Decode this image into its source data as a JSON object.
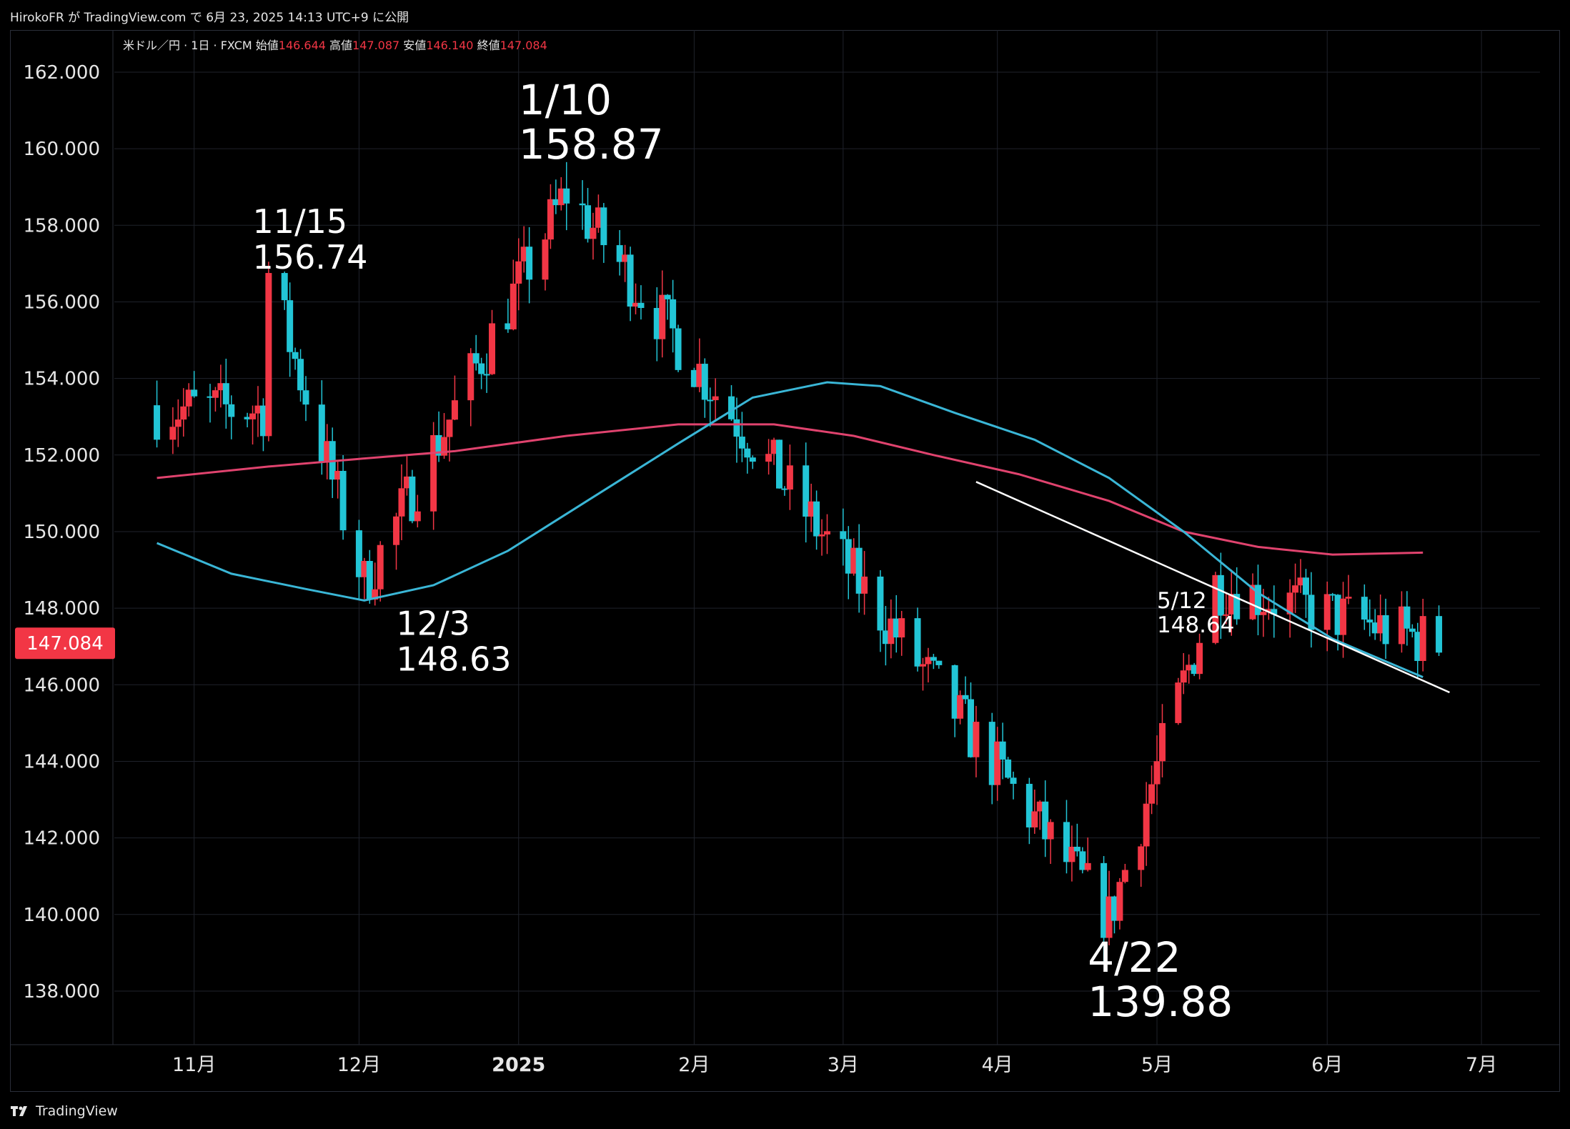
{
  "header": {
    "title": "HirokoFR が TradingView.com で 6月 23, 2025 14:13 UTC+9 に公開"
  },
  "legend": {
    "symbol": "米ドル／円 · 1日 · FXCM",
    "open_label": "始値",
    "open": "146.644",
    "high_label": "高値",
    "high": "147.087",
    "low_label": "安値",
    "low": "146.140",
    "close_label": "終値",
    "close": "147.084"
  },
  "footer": {
    "brand": "TradingView"
  },
  "chart_data": {
    "type": "candlestick",
    "title": "米ドル／円 · 1日 · FXCM",
    "ylim": [
      136.6,
      163.1
    ],
    "y_ticks": [
      "162.000",
      "160.000",
      "158.000",
      "156.000",
      "154.000",
      "152.000",
      "150.000",
      "148.000",
      "146.000",
      "144.000",
      "142.000",
      "140.000",
      "138.000"
    ],
    "x_ticks": [
      {
        "date": "2024-11-01",
        "label": "11月"
      },
      {
        "date": "2024-12-02",
        "label": "12月"
      },
      {
        "date": "2025-01-01",
        "label": "2025"
      },
      {
        "date": "2025-02-03",
        "label": "2月"
      },
      {
        "date": "2025-03-03",
        "label": "3月"
      },
      {
        "date": "2025-04-01",
        "label": "4月"
      },
      {
        "date": "2025-05-01",
        "label": "5月"
      },
      {
        "date": "2025-06-02",
        "label": "6月"
      },
      {
        "date": "2025-07-01",
        "label": "7月"
      }
    ],
    "last_price": "147.084",
    "colors": {
      "up": "#f23645",
      "down": "#22c5d6",
      "ma_blue": "#3ab6d6",
      "ma_red": "#e0436e",
      "trend": "#ffffff",
      "price_tag": "#f23645"
    },
    "anchors": [
      {
        "date": "2024-11-15",
        "price": 156.74
      },
      {
        "date": "2024-12-03",
        "price": 148.63
      },
      {
        "date": "2025-01-10",
        "price": 158.87
      },
      {
        "date": "2025-04-22",
        "price": 139.88
      },
      {
        "date": "2025-05-12",
        "price": 148.64
      },
      {
        "date": "2025-06-23",
        "price": 147.084
      }
    ],
    "ma_blue": [
      {
        "date": "2024-10-25",
        "v": 149.7
      },
      {
        "date": "2024-11-08",
        "v": 148.9
      },
      {
        "date": "2024-11-22",
        "v": 148.5
      },
      {
        "date": "2024-12-03",
        "v": 148.2
      },
      {
        "date": "2024-12-16",
        "v": 148.6
      },
      {
        "date": "2024-12-30",
        "v": 149.5
      },
      {
        "date": "2025-01-15",
        "v": 150.9
      },
      {
        "date": "2025-01-31",
        "v": 152.3
      },
      {
        "date": "2025-02-14",
        "v": 153.5
      },
      {
        "date": "2025-02-28",
        "v": 153.9
      },
      {
        "date": "2025-03-10",
        "v": 153.8
      },
      {
        "date": "2025-03-24",
        "v": 153.1
      },
      {
        "date": "2025-04-08",
        "v": 152.4
      },
      {
        "date": "2025-04-22",
        "v": 151.4
      },
      {
        "date": "2025-05-06",
        "v": 150.0
      },
      {
        "date": "2025-05-20",
        "v": 148.4
      },
      {
        "date": "2025-06-03",
        "v": 147.2
      },
      {
        "date": "2025-06-20",
        "v": 146.2
      }
    ],
    "ma_red": [
      {
        "date": "2024-10-25",
        "v": 151.4
      },
      {
        "date": "2024-11-15",
        "v": 151.7
      },
      {
        "date": "2024-12-02",
        "v": 151.9
      },
      {
        "date": "2024-12-20",
        "v": 152.1
      },
      {
        "date": "2025-01-10",
        "v": 152.5
      },
      {
        "date": "2025-01-31",
        "v": 152.8
      },
      {
        "date": "2025-02-18",
        "v": 152.8
      },
      {
        "date": "2025-03-05",
        "v": 152.5
      },
      {
        "date": "2025-03-20",
        "v": 152.0
      },
      {
        "date": "2025-04-05",
        "v": 151.5
      },
      {
        "date": "2025-04-22",
        "v": 150.8
      },
      {
        "date": "2025-05-06",
        "v": 150.0
      },
      {
        "date": "2025-05-20",
        "v": 149.6
      },
      {
        "date": "2025-06-03",
        "v": 149.4
      },
      {
        "date": "2025-06-20",
        "v": 149.45
      }
    ],
    "trendline": [
      {
        "date": "2025-03-28",
        "price": 151.3
      },
      {
        "date": "2025-06-25",
        "price": 145.8
      }
    ],
    "annotations": [
      {
        "date_label": "11/15",
        "price_label": "156.74",
        "date": "2024-11-12",
        "price": 157.8,
        "size": "medium"
      },
      {
        "date_label": "12/3",
        "price_label": "148.63",
        "date": "2024-12-09",
        "price": 147.3,
        "size": "medium"
      },
      {
        "date_label": "1/10",
        "price_label": "158.87",
        "date": "2025-01-01",
        "price": 160.9,
        "size": "large"
      },
      {
        "date_label": "4/22",
        "price_label": "139.88",
        "date": "2025-04-18",
        "price": 138.5,
        "size": "large"
      },
      {
        "date_label": "5/12",
        "price_label": "148.64",
        "date": "2025-05-01",
        "price": 148.0,
        "size": "small"
      }
    ]
  }
}
